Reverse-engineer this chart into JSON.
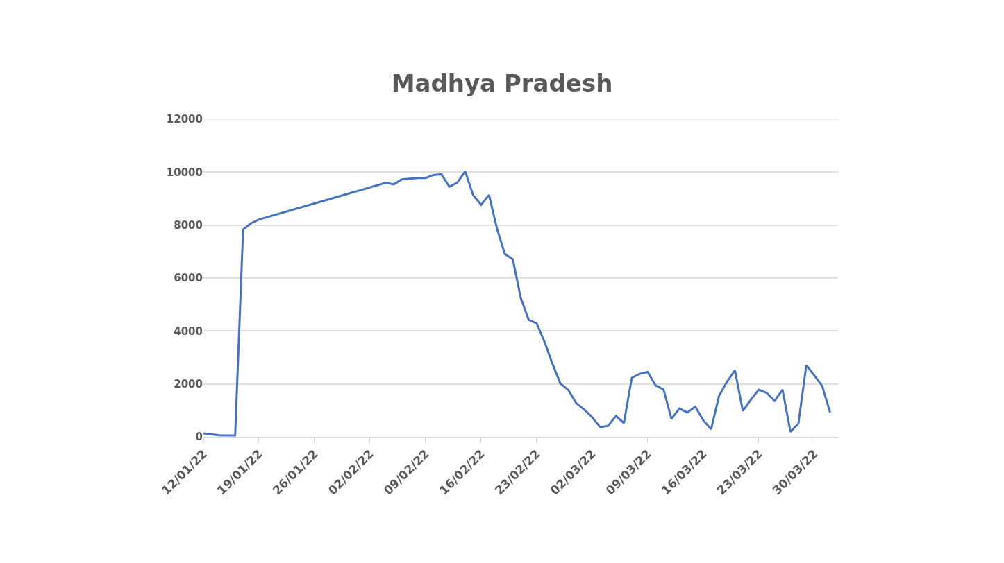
{
  "chart_data": {
    "type": "line",
    "title": "Madhya Pradesh",
    "x": [
      "--01-12",
      "--01-14",
      "--01-16",
      "--01-17",
      "--01-18",
      "--01-19",
      "--02-04",
      "--02-05",
      "--02-06",
      "--02-08",
      "--02-09",
      "--02-10",
      "--02-11",
      "--02-12",
      "--02-13",
      "--02-14",
      "--02-15",
      "--02-16",
      "--02-17",
      "--02-18",
      "--02-19",
      "--02-20",
      "--02-21",
      "--02-22",
      "--02-23",
      "--02-24",
      "--02-25",
      "--02-26",
      "--02-27",
      "--02-28",
      "--03-01",
      "--03-02",
      "--03-03",
      "--03-04",
      "--03-05",
      "--03-06",
      "--03-07",
      "--03-08",
      "--03-09",
      "--03-10",
      "--03-11",
      "--03-12",
      "--03-13",
      "--03-14",
      "--03-15",
      "--03-16",
      "--03-17",
      "--03-18",
      "--03-19",
      "--03-20",
      "--03-21",
      "--03-22",
      "--03-23",
      "--03-24",
      "--03-25",
      "--03-26",
      "--03-27",
      "--03-28",
      "--03-29",
      "--03-30",
      "--03-31",
      "--04-01"
    ],
    "series": [
      {
        "color": "#4472c4",
        "values": [
          130,
          60,
          50,
          7830,
          8070,
          8210,
          9600,
          9540,
          9730,
          9780,
          9780,
          9890,
          9920,
          9450,
          9610,
          10030,
          9130,
          8770,
          9140,
          7870,
          6910,
          6710,
          5250,
          4420,
          4290,
          3590,
          2760,
          2010,
          1770,
          1270,
          1030,
          740,
          370,
          410,
          790,
          520,
          2230,
          2380,
          2450,
          1940,
          1790,
          680,
          1070,
          920,
          1140,
          630,
          290,
          1550,
          2080,
          2510,
          980,
          1400,
          1780,
          1660,
          1360,
          1780,
          190,
          500,
          2710,
          2320,
          1920,
          920
        ]
      }
    ],
    "xlim": [
      "--01-12",
      "--04-02"
    ],
    "xticks": [
      {
        "value": "--01-12",
        "label": "12/01/22"
      },
      {
        "value": "--01-19",
        "label": "19/01/22"
      },
      {
        "value": "--01-26",
        "label": "26/01/22"
      },
      {
        "value": "--02-02",
        "label": "02/02/22"
      },
      {
        "value": "--02-09",
        "label": "09/02/22"
      },
      {
        "value": "--02-16",
        "label": "16/02/22"
      },
      {
        "value": "--02-23",
        "label": "23/02/22"
      },
      {
        "value": "--03-02",
        "label": "02/03/22"
      },
      {
        "value": "--03-09",
        "label": "09/03/22"
      },
      {
        "value": "--03-16",
        "label": "16/03/22"
      },
      {
        "value": "--03-23",
        "label": "23/03/22"
      },
      {
        "value": "--03-30",
        "label": "30/03/22"
      }
    ],
    "ylim": [
      0,
      12000
    ],
    "yticks": [
      0,
      2000,
      4000,
      6000,
      8000,
      10000,
      12000
    ],
    "grid": "y",
    "marker": "none",
    "line_style": "solid"
  }
}
